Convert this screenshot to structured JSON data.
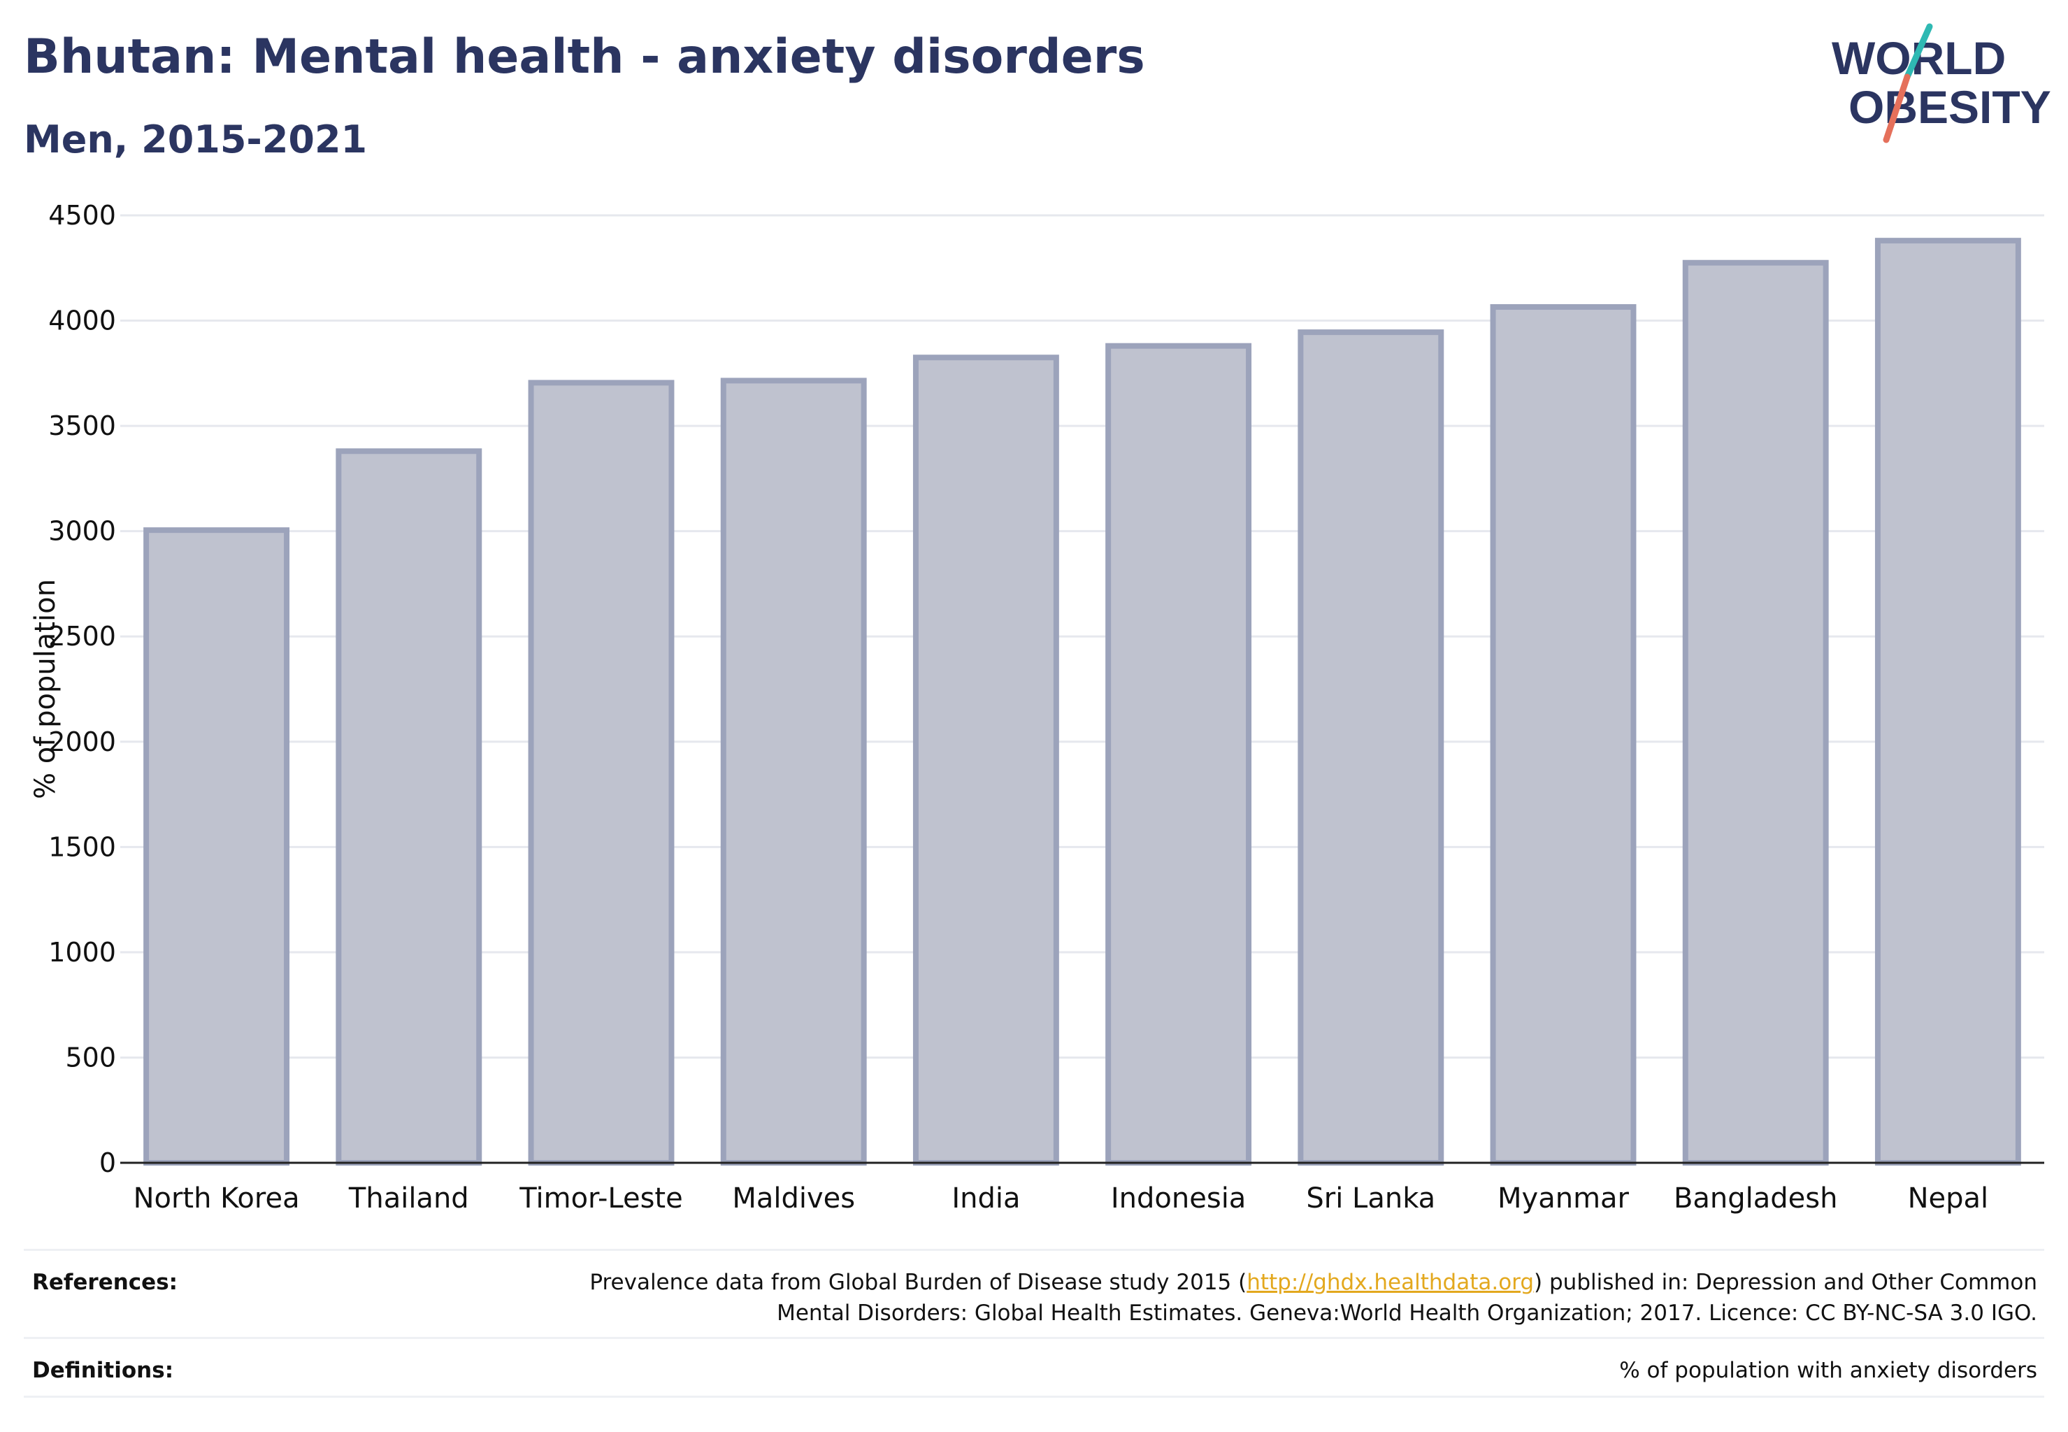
{
  "header": {
    "title": "Bhutan: Mental health - anxiety disorders",
    "subtitle": "Men, 2015-2021"
  },
  "logo": {
    "line1": "WORLD",
    "line2": "OBESITY",
    "colors": {
      "text": "#2b3561",
      "slash_teal": "#2fb9b3",
      "slash_coral": "#e5705b"
    }
  },
  "chart_data": {
    "type": "bar",
    "categories": [
      "North Korea",
      "Thailand",
      "Timor-Leste",
      "Maldives",
      "India",
      "Indonesia",
      "Sri Lanka",
      "Myanmar",
      "Bangladesh",
      "Nepal"
    ],
    "values": [
      3005,
      3380,
      3705,
      3715,
      3825,
      3880,
      3945,
      4065,
      4275,
      4380
    ],
    "xlabel": "",
    "ylabel": "% of population",
    "ylim": [
      0,
      4500
    ],
    "yticks": [
      0,
      500,
      1000,
      1500,
      2000,
      2500,
      3000,
      3500,
      4000,
      4500
    ],
    "grid": true,
    "colors": {
      "bar_fill": "#bfc2cf",
      "bar_stroke": "#9ca3bb",
      "grid": "#e6e8ee",
      "axis": "#222222"
    }
  },
  "footer": {
    "references_label": "References:",
    "references_line1_pre": "Prevalence data from Global Burden of Disease study 2015 (",
    "references_link": "http://ghdx.healthdata.org",
    "references_line1_post": ") published in: Depression and Other Common",
    "references_line2": "Mental Disorders: Global Health Estimates. Geneva:World Health Organization; 2017. Licence: CC BY-NC-SA 3.0 IGO.",
    "definitions_label": "Definitions:",
    "definitions_text": "% of population with anxiety disorders"
  }
}
